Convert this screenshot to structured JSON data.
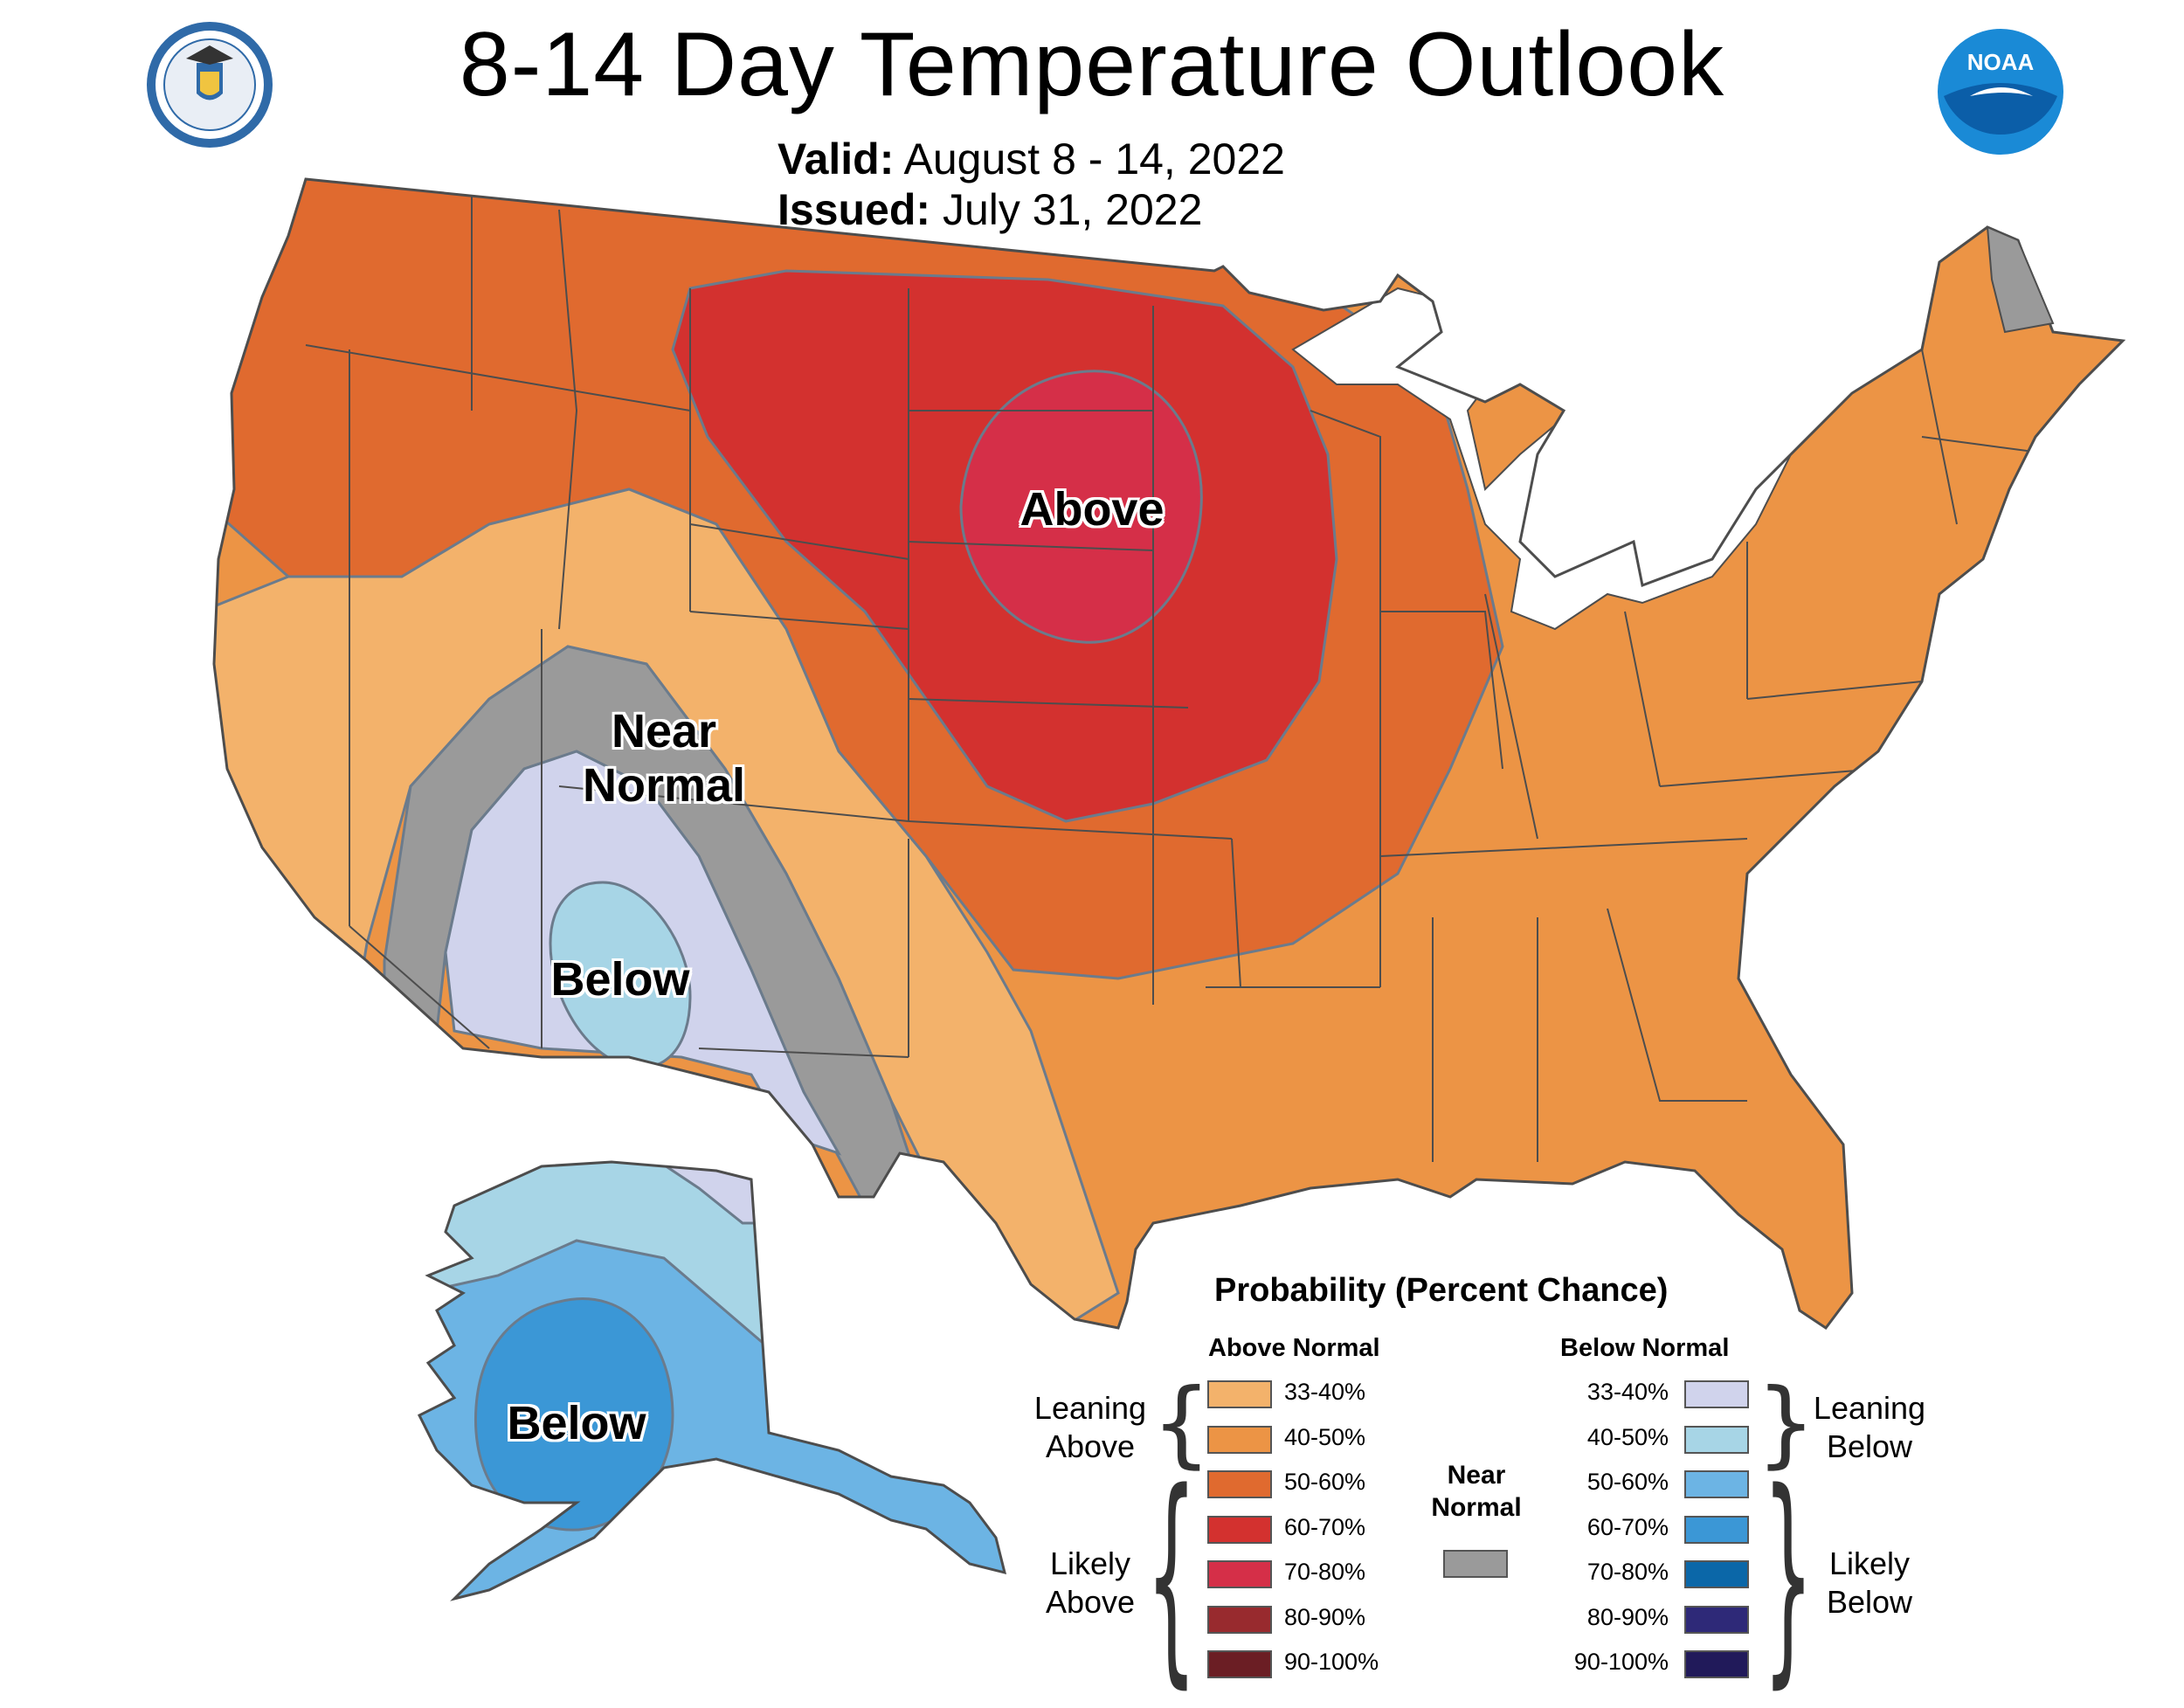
{
  "header": {
    "title": "8-14 Day Temperature Outlook",
    "valid_key": "Valid:",
    "valid_value": "August 8 - 14, 2022",
    "issued_key": "Issued:",
    "issued_value": "July 31, 2022",
    "logo_noaa_text": "NOAA"
  },
  "map": {
    "region_labels": {
      "above": "Above",
      "near_line1": "Near",
      "near_line2": "Normal",
      "below_west": "Below",
      "below_alaska": "Below"
    },
    "colors": {
      "land_unshaded": "#ffffff",
      "state_border": "#4d4d4d",
      "contour": "#6b7b8c"
    }
  },
  "legend": {
    "title": "Probability (Percent Chance)",
    "above_header": "Above Normal",
    "below_header": "Below Normal",
    "leaning_above": [
      "Leaning",
      "Above"
    ],
    "likely_above": [
      "Likely",
      "Above"
    ],
    "leaning_below": [
      "Leaning",
      "Below"
    ],
    "likely_below": [
      "Likely",
      "Below"
    ],
    "near_normal": [
      "Near",
      "Normal"
    ],
    "near_normal_color": "#9a9a9a",
    "above_items": [
      {
        "label": "33-40%",
        "color": "#f3b26b"
      },
      {
        "label": "40-50%",
        "color": "#ec9445"
      },
      {
        "label": "50-60%",
        "color": "#e06a2f"
      },
      {
        "label": "60-70%",
        "color": "#d3312f"
      },
      {
        "label": "70-80%",
        "color": "#d52f48"
      },
      {
        "label": "80-90%",
        "color": "#982a2e"
      },
      {
        "label": "90-100%",
        "color": "#6b1e24"
      }
    ],
    "below_items": [
      {
        "label": "33-40%",
        "color": "#d0d3ec"
      },
      {
        "label": "40-50%",
        "color": "#a7d5e6"
      },
      {
        "label": "50-60%",
        "color": "#6cb4e4"
      },
      {
        "label": "60-70%",
        "color": "#3b97d6"
      },
      {
        "label": "70-80%",
        "color": "#0b67a8"
      },
      {
        "label": "80-90%",
        "color": "#2e2978"
      },
      {
        "label": "90-100%",
        "color": "#211a5a"
      }
    ]
  }
}
